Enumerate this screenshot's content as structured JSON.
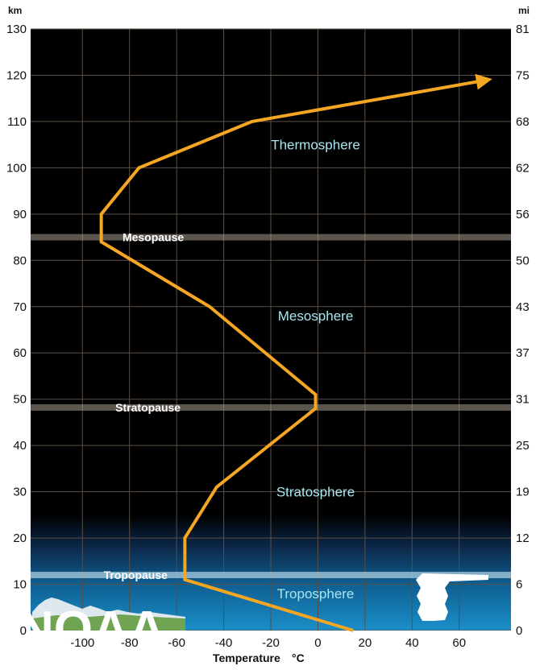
{
  "chart_data": {
    "type": "line",
    "y_left_unit": "km",
    "y_right_unit": "mi",
    "ylim": [
      0,
      130
    ],
    "xlim": [
      -122,
      82
    ],
    "y_ticks_km": [
      0,
      10,
      20,
      30,
      40,
      50,
      60,
      70,
      80,
      90,
      100,
      110,
      120,
      130
    ],
    "y_ticks_mi": [
      "0",
      "6",
      "12",
      "19",
      "25",
      "31",
      "37",
      "43",
      "50",
      "56",
      "62",
      "68",
      "75",
      "81"
    ],
    "x_ticks": [
      -100,
      -80,
      -60,
      -40,
      -20,
      0,
      20,
      40,
      60
    ],
    "x_tick_labels": [
      "-100",
      "-80",
      "-60",
      "-40",
      "-20",
      "0",
      "20",
      "40",
      "60"
    ],
    "xlabel": "Temperature",
    "xlabel_unit": "°C",
    "grid": true,
    "series": [
      {
        "color": "#f5a623",
        "x": [
          15,
          -56.5,
          -56.5,
          -43,
          -1,
          -1,
          -46,
          -92,
          -92,
          -76,
          -28,
          72
        ],
        "y": [
          0,
          11,
          20,
          31,
          48,
          51,
          70,
          84,
          90,
          100,
          110,
          119
        ]
      }
    ],
    "layers": [
      {
        "name": "Thermosphere",
        "x": -1,
        "y": 104
      },
      {
        "name": "Mesosphere",
        "x": -1,
        "y": 67
      },
      {
        "name": "Stratosphere",
        "x": -1,
        "y": 29
      },
      {
        "name": "Troposphere",
        "x": -1,
        "y": 7
      }
    ],
    "boundaries": [
      {
        "name": "Mesopause",
        "y": 85,
        "label_x": -83
      },
      {
        "name": "Stratopause",
        "y": 48.2,
        "label_x": -86
      },
      {
        "name": "Tropopause",
        "y": 12,
        "label_x": -91
      }
    ],
    "logo_text": "NOAA"
  }
}
